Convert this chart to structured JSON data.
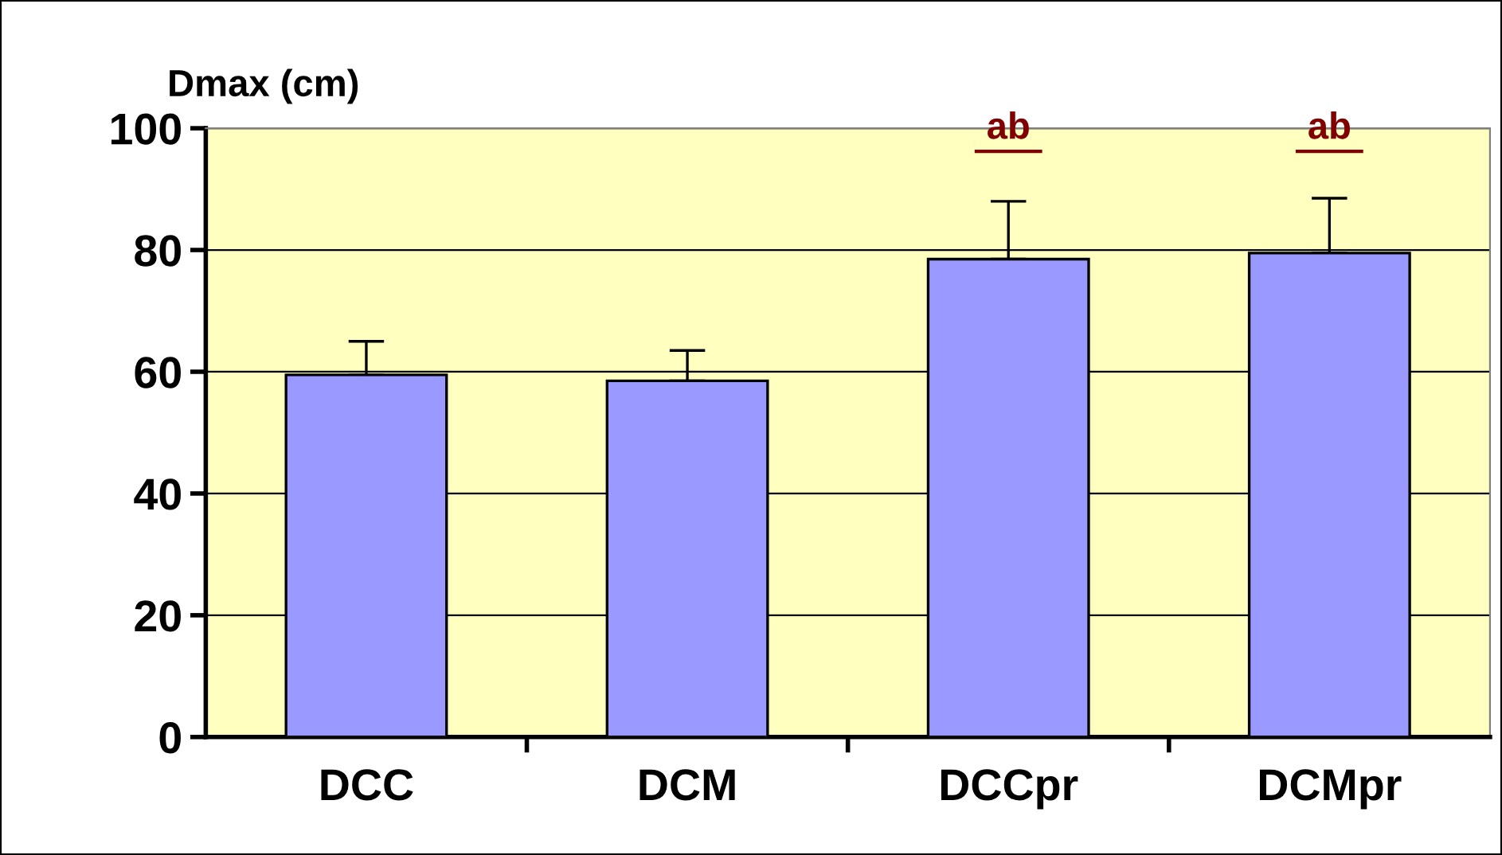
{
  "chart_data": {
    "type": "bar",
    "ylabel": "Dmax (cm)",
    "categories": [
      "DCC",
      "DCM",
      "DCCpr",
      "DCMpr"
    ],
    "values": [
      59.5,
      58.5,
      78.5,
      79.5
    ],
    "errors": [
      [
        59.5,
        65
      ],
      [
        58.5,
        63.5
      ],
      [
        78.5,
        88
      ],
      [
        79.5,
        88.5
      ]
    ],
    "color": "#9999ff",
    "ylim": [
      0,
      100
    ],
    "yticks": [
      0,
      20,
      40,
      60,
      80,
      100
    ],
    "grid": "y",
    "annotations": [
      "ab",
      "ab"
    ]
  }
}
